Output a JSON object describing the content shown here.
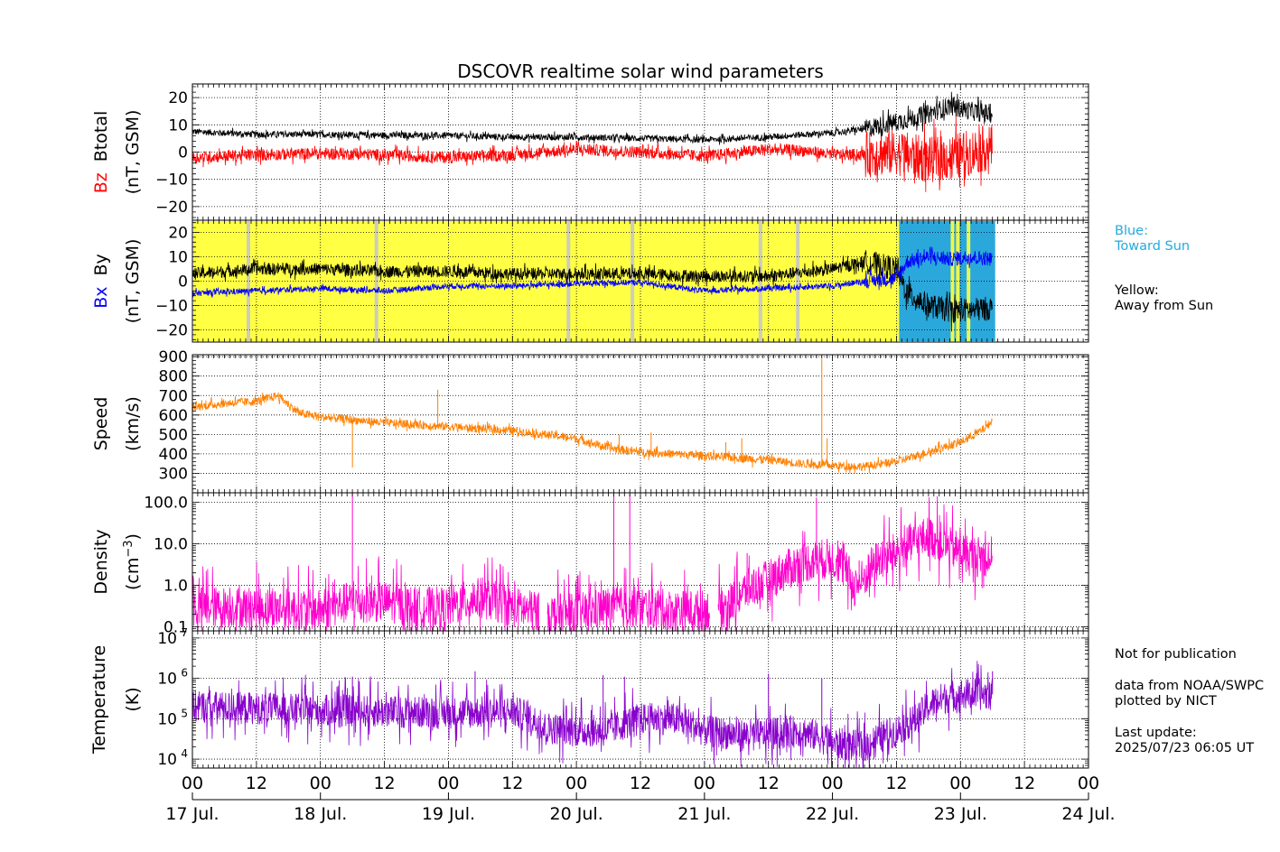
{
  "chart_data": {
    "type": "line",
    "title": "DSCOVR realtime solar wind parameters",
    "x_hour_ticks": [
      "00",
      "12",
      "00",
      "12",
      "00",
      "12",
      "00",
      "12",
      "00",
      "12",
      "00",
      "12",
      "00",
      "12",
      "00"
    ],
    "x_date_ticks": [
      "17 Jul.",
      "18 Jul.",
      "19 Jul.",
      "20 Jul.",
      "21 Jul.",
      "22 Jul.",
      "23 Jul.",
      "24 Jul."
    ],
    "xlim_hours": [
      0,
      168
    ],
    "grid": true,
    "colors": {
      "bz": "#ff0000",
      "btotal": "#000000",
      "bx": "#0000ff",
      "by": "#000000",
      "speed": "#ff8000",
      "density": "#ff00cc",
      "temperature": "#8800cc",
      "toward": "#2aa8dc",
      "away": "#ffff44",
      "gap": "#c8c8c8"
    },
    "panels": [
      {
        "id": "mag_z",
        "ylabel_colored": "Bz",
        "ylabel_plain": "Btotal",
        "ylabel_units": "(nT, GSM)",
        "ylim": [
          -25,
          25
        ],
        "yticks": [
          20,
          10,
          0,
          -10,
          -20
        ],
        "ytick_labels": [
          "20",
          "10",
          "0",
          "−10",
          "−20"
        ],
        "series": [
          {
            "name": "Btotal",
            "color": "#000000",
            "anchors": [
              [
                0,
                7.5
              ],
              [
                12,
                6.5
              ],
              [
                24,
                6.5
              ],
              [
                36,
                6.2
              ],
              [
                48,
                6.0
              ],
              [
                60,
                5.5
              ],
              [
                72,
                5.5
              ],
              [
                84,
                5.0
              ],
              [
                96,
                4.5
              ],
              [
                108,
                5.5
              ],
              [
                115,
                6.5
              ],
              [
                120,
                7.0
              ],
              [
                126,
                8.5
              ],
              [
                132,
                11
              ],
              [
                138,
                14
              ],
              [
                142,
                17
              ],
              [
                146,
                15
              ],
              [
                150,
                14
              ]
            ],
            "noise": 1.2,
            "noise_late": 3.5
          },
          {
            "name": "Bz",
            "color": "#ff0000",
            "anchors": [
              [
                0,
                -2
              ],
              [
                12,
                -1
              ],
              [
                24,
                -0.5
              ],
              [
                36,
                -1
              ],
              [
                48,
                -2
              ],
              [
                60,
                -1
              ],
              [
                72,
                1
              ],
              [
                84,
                0
              ],
              [
                96,
                -1.5
              ],
              [
                108,
                1
              ],
              [
                115,
                0.5
              ],
              [
                120,
                -1
              ],
              [
                126,
                -1
              ],
              [
                132,
                0
              ],
              [
                138,
                -3
              ],
              [
                142,
                -2
              ],
              [
                146,
                0
              ],
              [
                150,
                2
              ]
            ],
            "noise": 2.2,
            "noise_late": 8.5
          }
        ]
      },
      {
        "id": "mag_xy",
        "ylabel_colored": "Bx",
        "ylabel_plain": "By",
        "ylabel_units": "(nT, GSM)",
        "ylim": [
          -25,
          25
        ],
        "yticks": [
          20,
          10,
          0,
          -10,
          -20
        ],
        "ytick_labels": [
          "20",
          "10",
          "0",
          "−10",
          "−20"
        ],
        "sector_background": {
          "away_until_h": 132.5,
          "toward_until_h": 150.5,
          "gap_hours": [
            10.5,
            34.5,
            70.5,
            82.5,
            106.5,
            113.5,
            142.5,
            143.5,
            145.5
          ]
        },
        "series": [
          {
            "name": "By",
            "color": "#000000",
            "anchors": [
              [
                0,
                3
              ],
              [
                12,
                5
              ],
              [
                24,
                5
              ],
              [
                36,
                4
              ],
              [
                48,
                4
              ],
              [
                60,
                3
              ],
              [
                72,
                3
              ],
              [
                84,
                3
              ],
              [
                96,
                2
              ],
              [
                108,
                2
              ],
              [
                120,
                5
              ],
              [
                126,
                8
              ],
              [
                132,
                5
              ],
              [
                134,
                -5
              ],
              [
                138,
                -10
              ],
              [
                142,
                -12
              ],
              [
                146,
                -12
              ],
              [
                150,
                -11
              ]
            ],
            "noise": 2.5,
            "noise_late": 5.0
          },
          {
            "name": "Bx",
            "color": "#0000ff",
            "anchors": [
              [
                0,
                -5
              ],
              [
                12,
                -4
              ],
              [
                24,
                -3
              ],
              [
                36,
                -4
              ],
              [
                48,
                -2
              ],
              [
                60,
                -2
              ],
              [
                72,
                -1
              ],
              [
                84,
                -0.5
              ],
              [
                96,
                -4
              ],
              [
                108,
                -3
              ],
              [
                120,
                -2
              ],
              [
                126,
                0
              ],
              [
                132,
                1
              ],
              [
                134,
                8
              ],
              [
                138,
                10
              ],
              [
                142,
                9
              ],
              [
                146,
                10
              ],
              [
                150,
                9
              ]
            ],
            "noise": 1.2,
            "noise_late": 3.0
          }
        ]
      },
      {
        "id": "speed",
        "ylabel_plain": "Speed",
        "ylabel_units": "(km/s)",
        "ylim": [
          200,
          910
        ],
        "yticks": [
          900,
          800,
          700,
          600,
          500,
          400,
          300
        ],
        "ytick_labels": [
          "900",
          "800",
          "700",
          "600",
          "500",
          "400",
          "300"
        ],
        "series": [
          {
            "name": "Speed",
            "color": "#ff8000",
            "anchors": [
              [
                0,
                640
              ],
              [
                6,
                660
              ],
              [
                12,
                670
              ],
              [
                16,
                700
              ],
              [
                20,
                610
              ],
              [
                24,
                590
              ],
              [
                36,
                560
              ],
              [
                48,
                540
              ],
              [
                60,
                520
              ],
              [
                72,
                480
              ],
              [
                78,
                430
              ],
              [
                84,
                410
              ],
              [
                96,
                390
              ],
              [
                108,
                370
              ],
              [
                114,
                350
              ],
              [
                120,
                340
              ],
              [
                126,
                335
              ],
              [
                132,
                360
              ],
              [
                138,
                410
              ],
              [
                144,
                460
              ],
              [
                148,
                520
              ],
              [
                150,
                570
              ]
            ],
            "noise": 22,
            "spikes": [
              [
                30,
                330
              ],
              [
                46,
                730
              ],
              [
                80,
                500
              ],
              [
                86,
                510
              ],
              [
                100,
                460
              ],
              [
                103,
                480
              ],
              [
                105,
                330
              ],
              [
                118,
                890
              ],
              [
                119,
                480
              ]
            ]
          }
        ]
      },
      {
        "id": "density",
        "ylabel_plain": "Density",
        "ylabel_units": "(cm",
        "ylabel_exp": "−3",
        "ylabel_close": ")",
        "log": true,
        "ylim": [
          0.08,
          170
        ],
        "yticks": [
          100,
          10,
          1,
          0.1
        ],
        "ytick_labels": [
          "100.0",
          "10.0",
          "1.0",
          "0.1"
        ],
        "series": [
          {
            "name": "Density",
            "color": "#ff00cc",
            "anchors": [
              [
                0,
                0.3
              ],
              [
                12,
                0.3
              ],
              [
                24,
                0.25
              ],
              [
                30,
                0.4
              ],
              [
                36,
                0.4
              ],
              [
                42,
                0.3
              ],
              [
                48,
                0.3
              ],
              [
                54,
                0.5
              ],
              [
                60,
                0.3
              ],
              [
                66,
                0.2
              ],
              [
                72,
                0.2
              ],
              [
                78,
                0.3
              ],
              [
                84,
                0.3
              ],
              [
                90,
                0.25
              ],
              [
                96,
                0.25
              ],
              [
                100,
                0.3
              ],
              [
                102,
                0.5
              ],
              [
                104,
                0.8
              ],
              [
                108,
                1.3
              ],
              [
                112,
                2.5
              ],
              [
                114,
                3.5
              ],
              [
                120,
                4.5
              ],
              [
                124,
                0.9
              ],
              [
                126,
                1.5
              ],
              [
                128,
                3.5
              ],
              [
                132,
                6
              ],
              [
                136,
                12
              ],
              [
                138,
                15
              ],
              [
                142,
                8
              ],
              [
                146,
                5
              ],
              [
                150,
                5
              ]
            ],
            "noise_log": 0.5,
            "gaps_h": [
              [
                65,
                66.5
              ],
              [
                97,
                98.5
              ]
            ],
            "spikes": [
              [
                30,
                180
              ],
              [
                79,
                160
              ],
              [
                82,
                160
              ],
              [
                104,
                6
              ],
              [
                117,
                130
              ],
              [
                121,
                12
              ],
              [
                125,
                4
              ]
            ]
          }
        ]
      },
      {
        "id": "temperature",
        "ylabel_plain": "Temperature",
        "ylabel_units": "(K)",
        "log": true,
        "ylim": [
          6000,
          15000000.0
        ],
        "yticks": [
          10000000.0,
          1000000.0,
          100000.0,
          10000.0
        ],
        "ytick_labels": [
          "10",
          "10",
          "10",
          "10"
        ],
        "ytick_exps": [
          "7",
          "6",
          "5",
          "4"
        ],
        "series": [
          {
            "name": "Temperature",
            "color": "#8800cc",
            "anchors": [
              [
                0,
                200000.0
              ],
              [
                12,
                180000.0
              ],
              [
                24,
                160000.0
              ],
              [
                36,
                150000.0
              ],
              [
                48,
                140000.0
              ],
              [
                60,
                150000.0
              ],
              [
                66,
                60000.0
              ],
              [
                72,
                50000.0
              ],
              [
                78,
                50000.0
              ],
              [
                84,
                100000.0
              ],
              [
                90,
                100000.0
              ],
              [
                96,
                50000.0
              ],
              [
                102,
                40000.0
              ],
              [
                108,
                40000.0
              ],
              [
                114,
                50000.0
              ],
              [
                120,
                25000.0
              ],
              [
                126,
                20000.0
              ],
              [
                132,
                50000.0
              ],
              [
                136,
                100000.0
              ],
              [
                140,
                300000.0
              ],
              [
                144,
                400000.0
              ],
              [
                148,
                400000.0
              ],
              [
                150,
                400000.0
              ]
            ],
            "noise_log": 0.4,
            "spikes": [
              [
                30,
                1100000.0
              ],
              [
                53,
                1500000.0
              ],
              [
                77,
                1200000.0
              ],
              [
                81,
                1100000.0
              ],
              [
                108,
                1300000.0
              ],
              [
                118,
                1000000.0
              ],
              [
                150,
                1500000.0
              ]
            ]
          }
        ]
      }
    ]
  },
  "annotations": {
    "toward_line1": "Blue:",
    "toward_line2": "Toward Sun",
    "away_line1": "Yellow:",
    "away_line2": "Away from Sun",
    "notice": "Not for publication",
    "source_line1": "data from NOAA/SWPC",
    "source_line2": "plotted by NICT",
    "update_label": "Last update:",
    "update_value": "2025/07/23 06:05 UT"
  }
}
